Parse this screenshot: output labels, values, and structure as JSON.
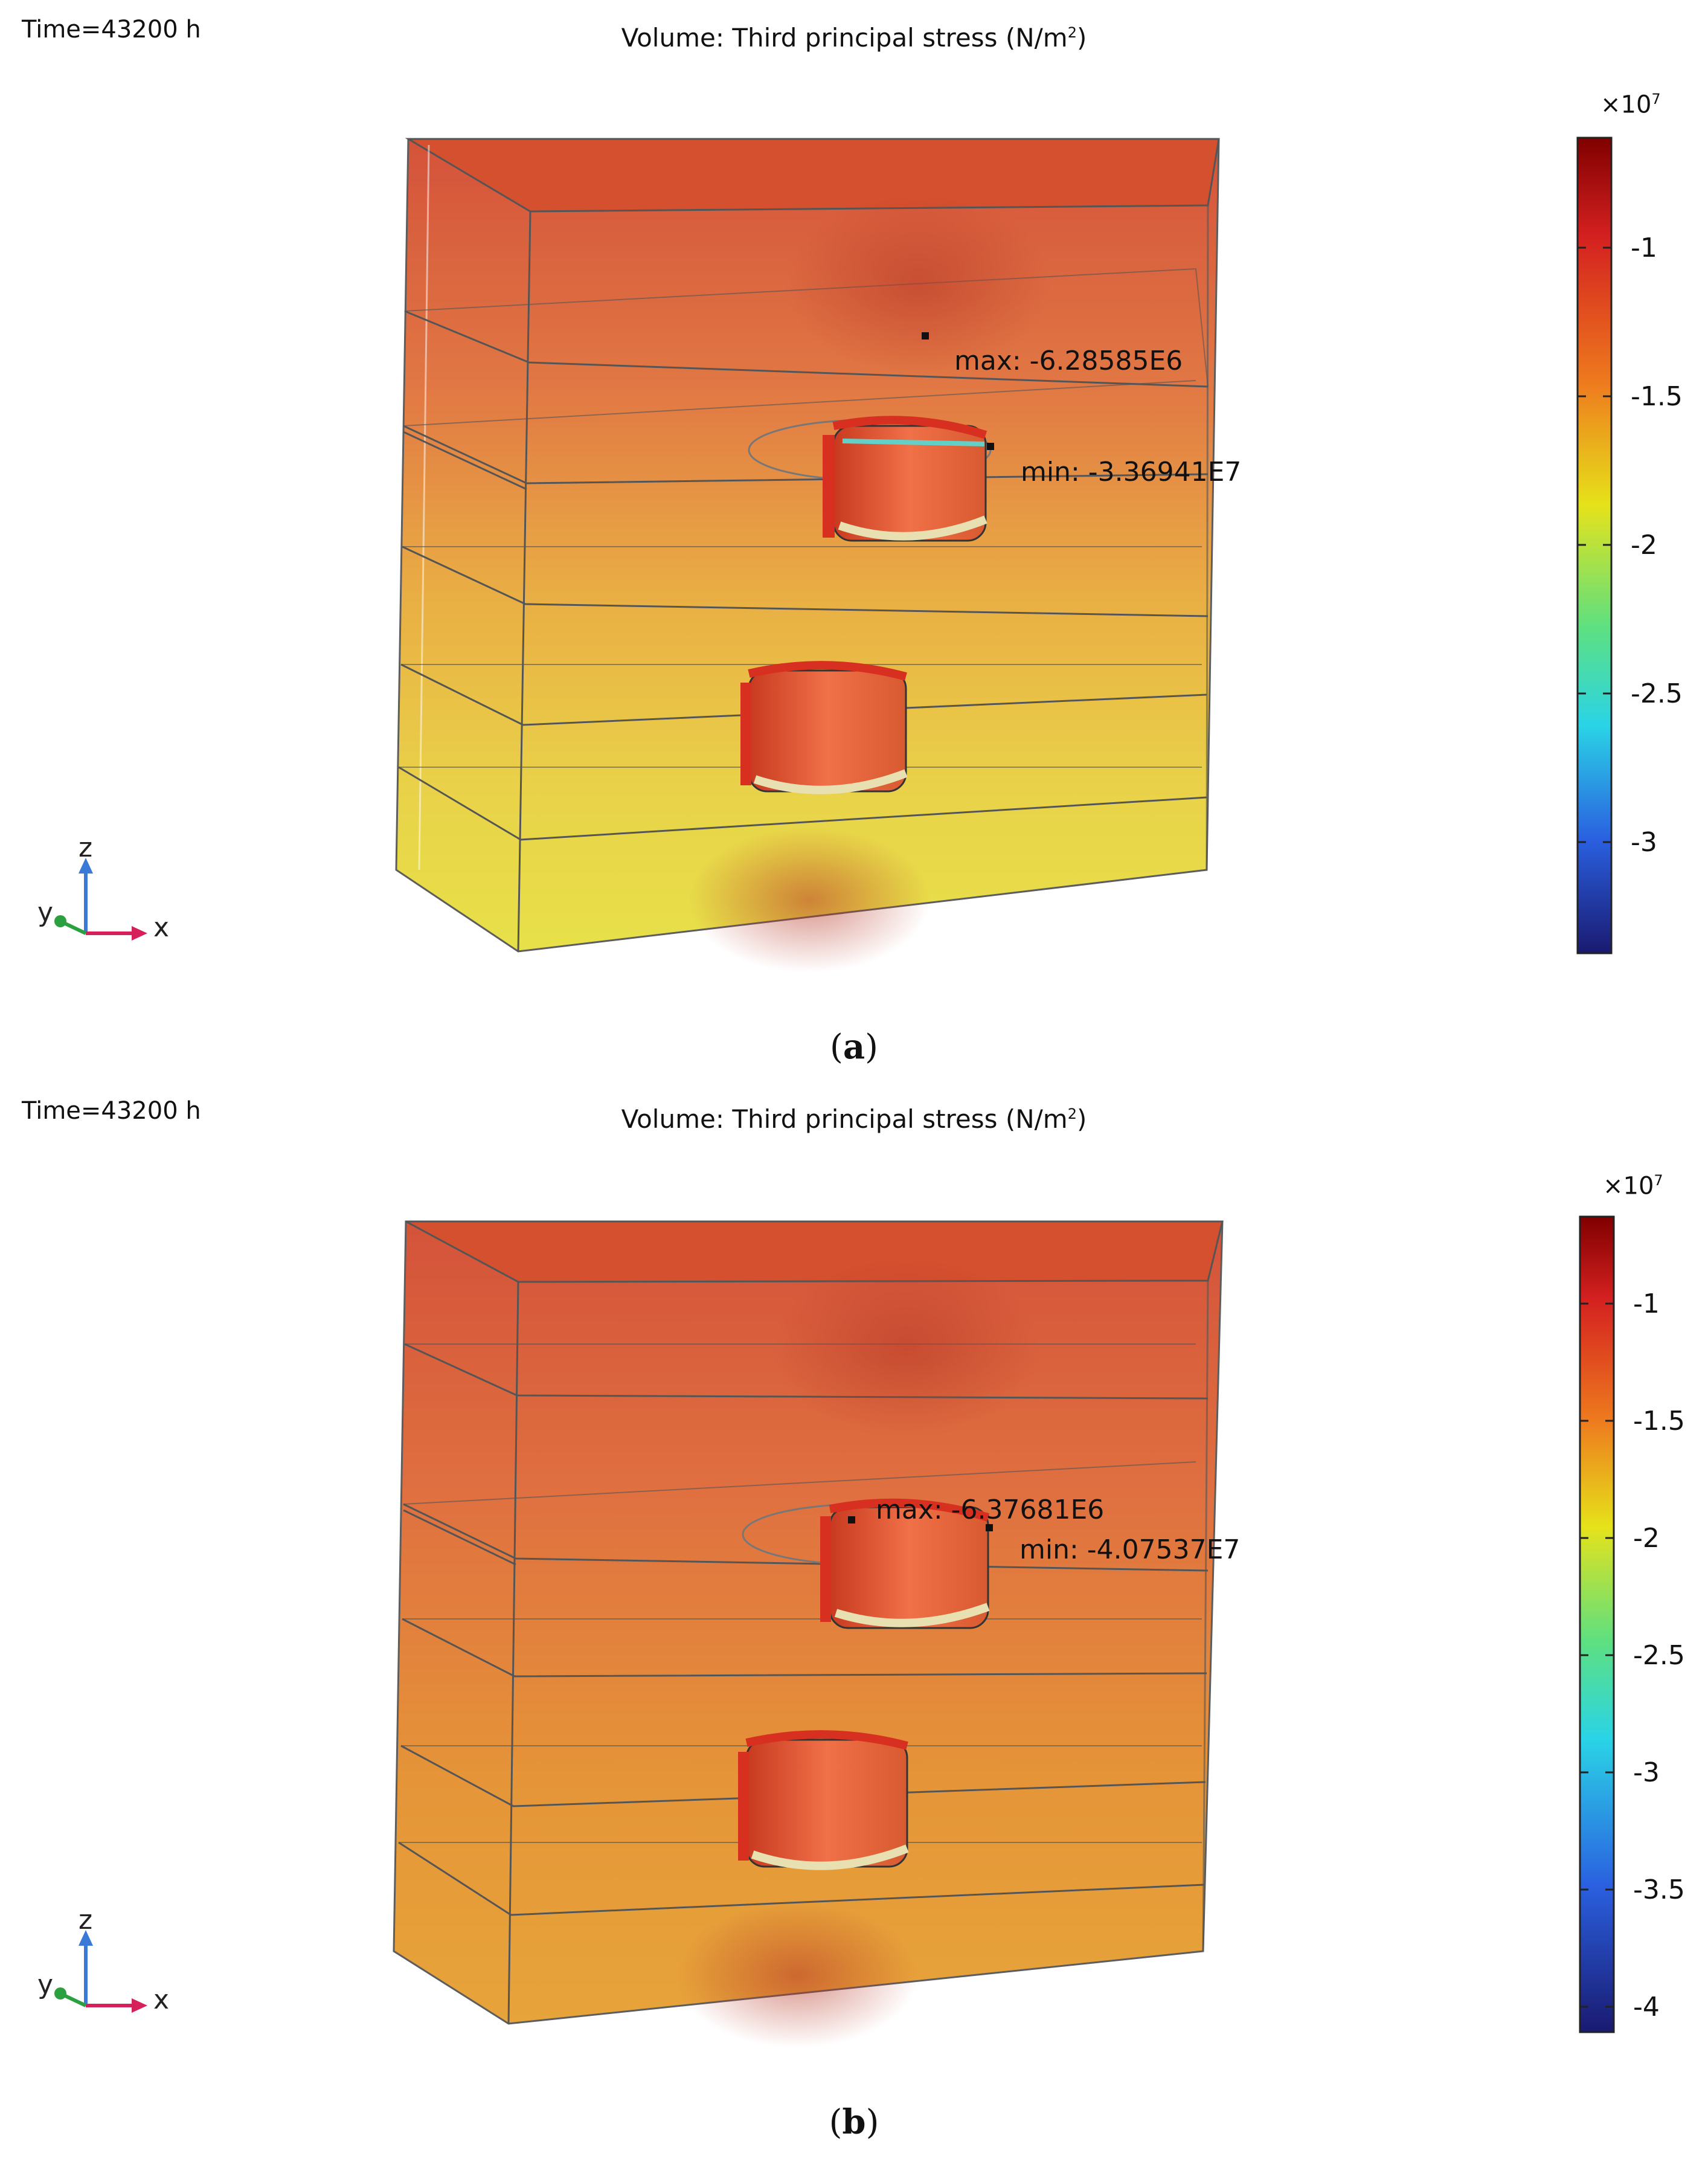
{
  "panels": [
    {
      "id": "a",
      "time_label": "Time=43200 h",
      "title_main": "Volume: Third principal stress (N/m",
      "title_sup": "2",
      "title_end": ")",
      "multiplier_base": "×10",
      "multiplier_exp": "7",
      "colorbar_ticks": [
        "-1",
        "-1.5",
        "-2",
        "-2.5",
        "-3"
      ],
      "max_label": "max: -6.28585E6",
      "min_label": "min: -3.36941E7",
      "caption_open": "(",
      "caption_letter": "a",
      "caption_close": ")",
      "axis_labels": {
        "z": "z",
        "y": "y",
        "x": "x"
      }
    },
    {
      "id": "b",
      "time_label": "Time=43200 h",
      "title_main": "Volume: Third principal stress (N/m",
      "title_sup": "2",
      "title_end": ")",
      "multiplier_base": "×10",
      "multiplier_exp": "7",
      "colorbar_ticks": [
        "-1",
        "-1.5",
        "-2",
        "-2.5",
        "-3",
        "-3.5",
        "-4"
      ],
      "max_label": "max: -6.37681E6",
      "min_label": "min: -4.07537E7",
      "caption_open": "(",
      "caption_letter": "b",
      "caption_close": ")",
      "axis_labels": {
        "z": "z",
        "y": "y",
        "x": "x"
      }
    }
  ],
  "colors": {
    "colormap": [
      "#800000",
      "#d42020",
      "#e8641a",
      "#f0a020",
      "#e6e21a",
      "#7ee060",
      "#2ad4e6",
      "#2a7ae6",
      "#2a30c8",
      "#1a1a70"
    ],
    "block_top": "#d24a30",
    "block_bottom_a": "#e8d840",
    "block_bottom_b": "#e2902c",
    "axis_x": "#d6205a",
    "axis_y": "#2aa040",
    "axis_z": "#3a7ad6"
  }
}
